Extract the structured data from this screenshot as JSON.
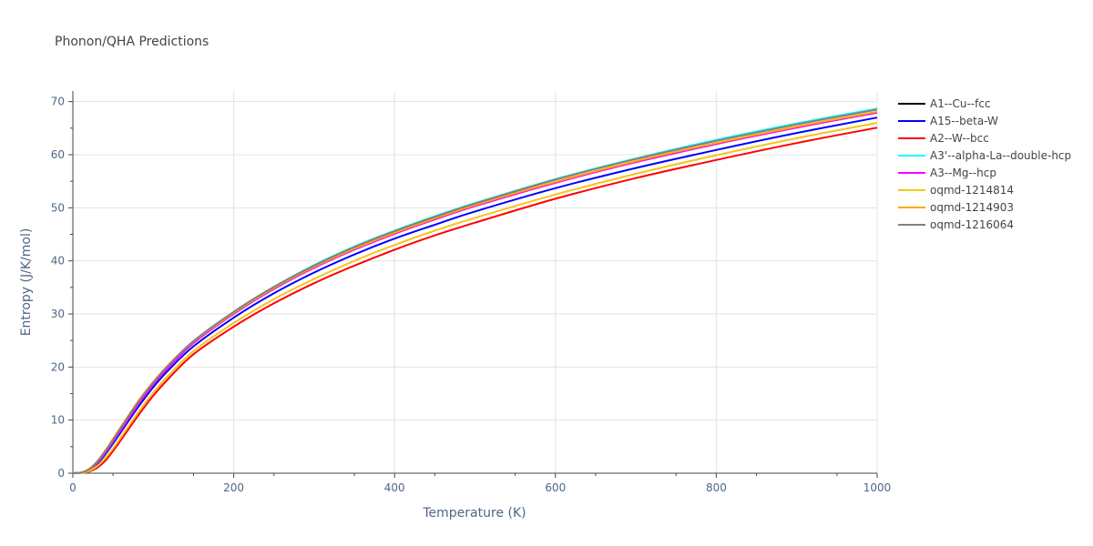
{
  "chart_data": {
    "type": "line",
    "title": "Phonon/QHA Predictions",
    "xlabel": "Temperature (K)",
    "ylabel": "Entropy (J/K/mol)",
    "xlim": [
      0,
      1000
    ],
    "ylim": [
      0,
      72
    ],
    "xticks": [
      0,
      200,
      400,
      600,
      800,
      1000
    ],
    "xtick_labels": [
      "0",
      "200",
      "400",
      "600",
      "800",
      "1000"
    ],
    "yticks": [
      0,
      10,
      20,
      30,
      40,
      50,
      60,
      70
    ],
    "ytick_labels": [
      "0",
      "10",
      "20",
      "30",
      "40",
      "50",
      "60",
      "70"
    ],
    "grid": true,
    "legend_position": "right",
    "x": [
      0,
      10,
      20,
      30,
      40,
      50,
      60,
      80,
      100,
      120,
      150,
      200,
      250,
      300,
      350,
      400,
      450,
      500,
      600,
      700,
      800,
      900,
      1000
    ],
    "series": [
      {
        "name": "A1--Cu--fcc",
        "color": "#000000",
        "values": [
          0,
          0.1,
          0.6,
          1.9,
          3.8,
          6.0,
          8.3,
          12.8,
          16.8,
          20.2,
          24.6,
          30.1,
          34.8,
          38.8,
          42.2,
          45.2,
          47.9,
          50.4,
          54.8,
          58.7,
          62.1,
          65.2,
          68.0
        ]
      },
      {
        "name": "A15--beta-W",
        "color": "#0000ff",
        "values": [
          0,
          0.1,
          0.5,
          1.7,
          3.5,
          5.6,
          7.8,
          12.2,
          16.2,
          19.6,
          23.9,
          29.3,
          33.9,
          37.8,
          41.2,
          44.2,
          46.8,
          49.3,
          53.7,
          57.5,
          60.9,
          64.1,
          67.0
        ]
      },
      {
        "name": "A2--W--bcc",
        "color": "#ff0000",
        "values": [
          0,
          0.05,
          0.3,
          1.0,
          2.3,
          4.2,
          6.3,
          10.6,
          14.6,
          18.0,
          22.4,
          27.6,
          32.0,
          35.8,
          39.1,
          42.1,
          44.8,
          47.2,
          51.7,
          55.6,
          59.0,
          62.2,
          65.1
        ]
      },
      {
        "name": "A3'--alpha-La--double-hcp",
        "color": "#00ffff",
        "values": [
          0,
          0.1,
          0.6,
          1.9,
          3.8,
          6.0,
          8.3,
          12.9,
          16.9,
          20.4,
          24.8,
          30.4,
          35.1,
          39.2,
          42.7,
          45.7,
          48.4,
          50.9,
          55.4,
          59.3,
          62.8,
          65.9,
          68.7
        ]
      },
      {
        "name": "A3--Mg--hcp",
        "color": "#ff00ff",
        "values": [
          0,
          0.1,
          0.6,
          1.9,
          3.8,
          6.0,
          8.2,
          12.7,
          16.7,
          20.1,
          24.5,
          30.0,
          34.7,
          38.7,
          42.1,
          45.1,
          47.8,
          50.3,
          54.7,
          58.6,
          62.0,
          65.1,
          67.9
        ]
      },
      {
        "name": "oqmd-1214814",
        "color": "#f5c518",
        "values": [
          0,
          0.05,
          0.4,
          1.3,
          2.8,
          4.7,
          6.8,
          11.2,
          15.2,
          18.6,
          23.0,
          28.3,
          32.8,
          36.6,
          40.0,
          43.0,
          45.7,
          48.1,
          52.5,
          56.4,
          59.9,
          63.1,
          66.0
        ]
      },
      {
        "name": "oqmd-1214903",
        "color": "#ffa500",
        "values": [
          0,
          0.1,
          0.8,
          2.2,
          4.2,
          6.5,
          8.8,
          13.3,
          17.2,
          20.6,
          24.8,
          30.2,
          34.9,
          38.9,
          42.3,
          45.3,
          48.0,
          50.5,
          54.9,
          58.8,
          62.2,
          65.3,
          68.1
        ]
      },
      {
        "name": "oqmd-1216064",
        "color": "#808080",
        "values": [
          0,
          0.1,
          0.7,
          2.1,
          4.1,
          6.3,
          8.6,
          13.1,
          17.1,
          20.5,
          24.9,
          30.4,
          35.1,
          39.1,
          42.6,
          45.6,
          48.3,
          50.8,
          55.3,
          59.2,
          62.6,
          65.7,
          68.5
        ]
      }
    ]
  }
}
